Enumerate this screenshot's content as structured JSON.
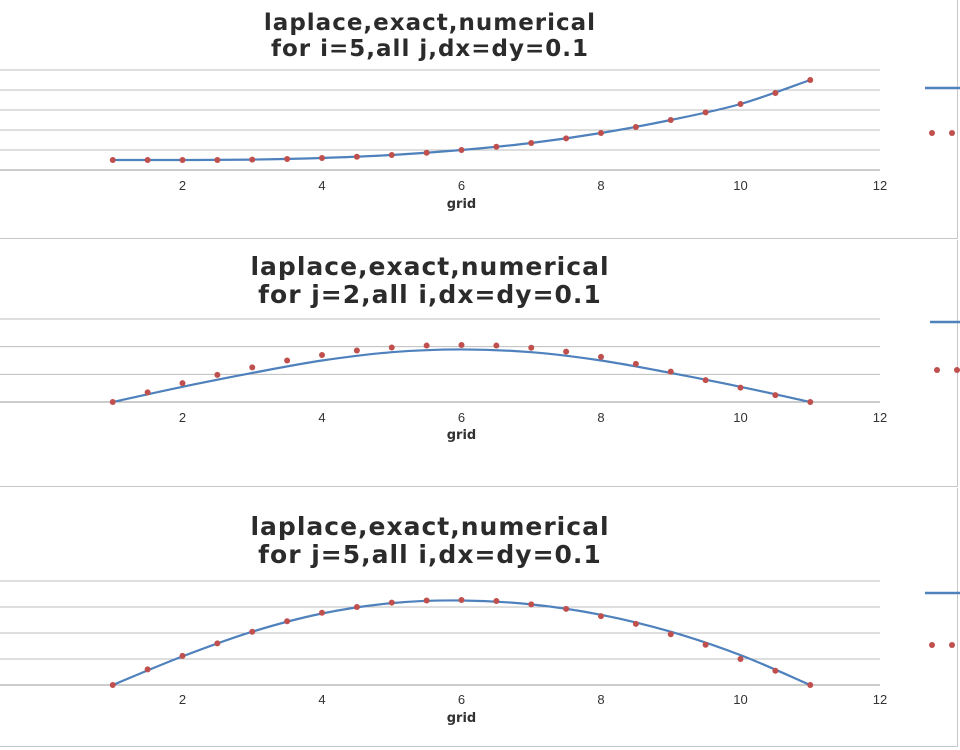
{
  "chart_data": [
    {
      "type": "line",
      "title": "laplace,exact,numerical",
      "subtitle": "for i=5,all j,dx=dy=0.1",
      "xlabel": "grid",
      "ylabel": "",
      "xlim": [
        0,
        12
      ],
      "x_ticks": [
        "2",
        "4",
        "6",
        "8",
        "10",
        "12"
      ],
      "ylim": [
        0,
        5
      ],
      "grid": true,
      "legend": "right",
      "series": [
        {
          "style": "solid-line",
          "color": "#4f81bd",
          "x": [
            1,
            2,
            3,
            4,
            5,
            6,
            7,
            8,
            9,
            10,
            11
          ],
          "values": [
            0.5,
            0.5,
            0.52,
            0.6,
            0.75,
            1.0,
            1.35,
            1.85,
            2.5,
            3.3,
            4.5
          ]
        },
        {
          "style": "dotted-points",
          "color": "#c0504d",
          "x": [
            1,
            1.5,
            2,
            2.5,
            3,
            3.5,
            4,
            4.5,
            5,
            5.5,
            6,
            6.5,
            7,
            7.5,
            8,
            8.5,
            9,
            9.5,
            10,
            10.5,
            11
          ],
          "values": [
            0.5,
            0.5,
            0.5,
            0.5,
            0.52,
            0.55,
            0.6,
            0.66,
            0.75,
            0.86,
            1.0,
            1.16,
            1.35,
            1.58,
            1.85,
            2.15,
            2.5,
            2.88,
            3.3,
            3.85,
            4.5
          ]
        }
      ]
    },
    {
      "type": "line",
      "title": "laplace,exact,numerical",
      "subtitle": "for j=2,all i,dx=dy=0.1",
      "xlabel": "grid",
      "ylabel": "",
      "xlim": [
        0,
        12
      ],
      "x_ticks": [
        "2",
        "4",
        "6",
        "8",
        "10",
        "12"
      ],
      "ylim": [
        0,
        3
      ],
      "grid": true,
      "legend": "right",
      "series": [
        {
          "style": "solid-line",
          "color": "#4f81bd",
          "x": [
            1,
            2,
            3,
            4,
            5,
            6,
            7,
            8,
            9,
            10,
            11
          ],
          "values": [
            0,
            0.55,
            1.05,
            1.5,
            1.8,
            1.9,
            1.8,
            1.5,
            1.05,
            0.55,
            0
          ]
        },
        {
          "style": "dotted-points",
          "color": "#c0504d",
          "x": [
            1,
            1.5,
            2,
            2.5,
            3,
            3.5,
            4,
            4.5,
            5,
            5.5,
            6,
            6.5,
            7,
            7.5,
            8,
            8.5,
            9,
            9.5,
            10,
            10.5,
            11
          ],
          "values": [
            0,
            0.35,
            0.68,
            0.98,
            1.25,
            1.5,
            1.7,
            1.86,
            1.97,
            2.04,
            2.06,
            2.04,
            1.96,
            1.82,
            1.63,
            1.38,
            1.1,
            0.79,
            0.52,
            0.25,
            0
          ]
        }
      ]
    },
    {
      "type": "line",
      "title": "laplace,exact,numerical",
      "subtitle": "for j=5,all i,dx=dy=0.1",
      "xlabel": "grid",
      "ylabel": "",
      "xlim": [
        0,
        12
      ],
      "x_ticks": [
        "2",
        "4",
        "6",
        "8",
        "10",
        "12"
      ],
      "ylim": [
        0,
        4
      ],
      "grid": true,
      "legend": "right",
      "series": [
        {
          "style": "solid-line",
          "color": "#4f81bd",
          "x": [
            1,
            2,
            3,
            4,
            5,
            6,
            7,
            8,
            9,
            10,
            11
          ],
          "values": [
            0,
            1.1,
            2.05,
            2.75,
            3.15,
            3.25,
            3.1,
            2.7,
            2.05,
            1.15,
            0
          ]
        },
        {
          "style": "dotted-points",
          "color": "#c0504d",
          "x": [
            1,
            1.5,
            2,
            2.5,
            3,
            3.5,
            4,
            4.5,
            5,
            5.5,
            6,
            6.5,
            7,
            7.5,
            8,
            8.5,
            9,
            9.5,
            10,
            10.5,
            11
          ],
          "values": [
            0,
            0.6,
            1.12,
            1.6,
            2.05,
            2.45,
            2.78,
            3.0,
            3.17,
            3.25,
            3.27,
            3.23,
            3.1,
            2.93,
            2.65,
            2.35,
            1.95,
            1.55,
            1.0,
            0.55,
            0
          ]
        }
      ]
    }
  ]
}
